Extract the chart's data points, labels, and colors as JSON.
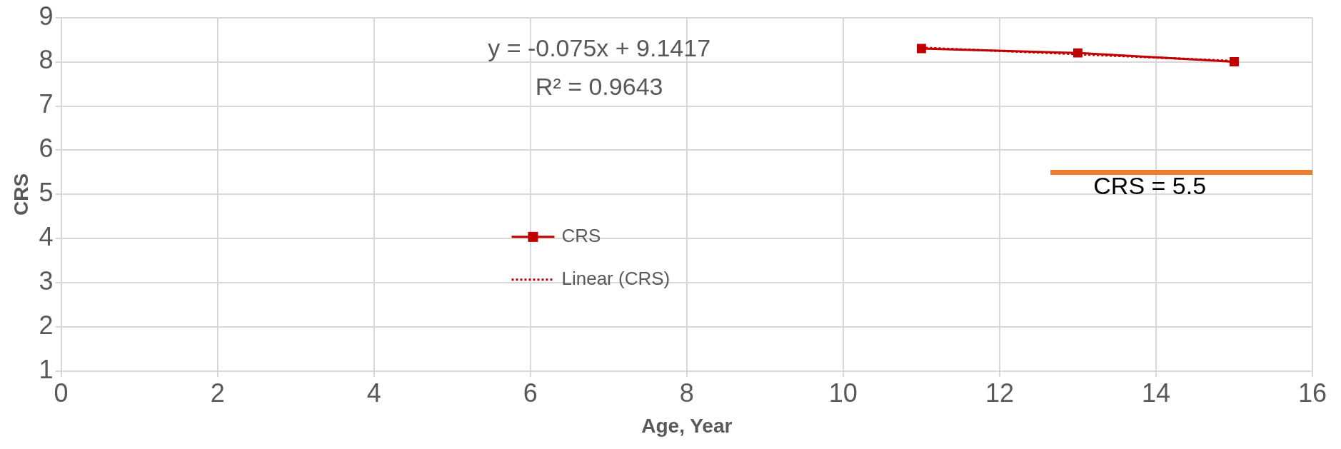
{
  "chart_data": {
    "type": "line",
    "xlabel": "Age, Year",
    "ylabel": "CRS",
    "xlim": [
      0,
      16
    ],
    "xticks": [
      0,
      2,
      4,
      6,
      8,
      10,
      12,
      14,
      16
    ],
    "ylim": [
      1,
      9
    ],
    "yticks": [
      1,
      2,
      3,
      4,
      5,
      6,
      7,
      8,
      9
    ],
    "grid": true,
    "legend": "center",
    "series": [
      {
        "name": "CRS",
        "color": "#c00000",
        "x": [
          11,
          13,
          15
        ],
        "values": [
          8.3,
          8.2,
          8.0
        ],
        "marker": "square",
        "line_style": "solid"
      },
      {
        "name": "Linear (CRS)",
        "color": "#c00000",
        "x": [
          11,
          15
        ],
        "values": [
          8.32,
          8.02
        ],
        "marker": "none",
        "line_style": "dotted"
      },
      {
        "color": "#ed7d31",
        "x": [
          12.65,
          16
        ],
        "values": [
          5.5,
          5.5
        ],
        "marker": "none",
        "line_style": "solid"
      }
    ],
    "annotations": [
      "y = -0.075x + 9.1417",
      "R² = 0.9643",
      "CRS = 5.5"
    ]
  }
}
